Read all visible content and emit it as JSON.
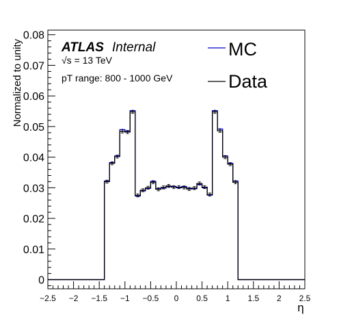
{
  "chart_data": {
    "type": "line",
    "style": "step-histogram",
    "xlabel": "η",
    "ylabel": "Normalized to unity",
    "xlim": [
      -2.5,
      2.5
    ],
    "ylim": [
      -0.003,
      0.0815
    ],
    "x_ticks": [
      -2.5,
      -2,
      -1.5,
      -1,
      -0.5,
      0,
      0.5,
      1,
      1.5,
      2,
      2.5
    ],
    "x_tick_labels": [
      "−2.5",
      "−2",
      "−1.5",
      "−1",
      "−0.5",
      "0",
      "0.5",
      "1",
      "1.5",
      "2",
      "2.5"
    ],
    "y_ticks": [
      0,
      0.01,
      0.02,
      0.03,
      0.04,
      0.05,
      0.06,
      0.07,
      0.08
    ],
    "y_tick_labels": [
      "0",
      "0.01",
      "0.02",
      "0.03",
      "0.04",
      "0.05",
      "0.06",
      "0.07",
      "0.08"
    ],
    "grid": false,
    "legend_position": "top-right",
    "annotations": {
      "atlas": "ATLAS",
      "internal": "Internal",
      "energy": "√s = 13 TeV",
      "range": "pT range: 800 - 1000 GeV"
    },
    "bin_edges": [
      -2.5,
      -1.4,
      -1.3,
      -1.2,
      -1.1,
      -1.0,
      -0.9,
      -0.8,
      -0.7,
      -0.6,
      -0.5,
      -0.4,
      -0.3,
      -0.2,
      -0.1,
      0.0,
      0.1,
      0.2,
      0.3,
      0.4,
      0.5,
      0.6,
      0.7,
      0.8,
      0.9,
      1.0,
      1.1,
      1.2,
      1.3,
      1.4,
      2.5
    ],
    "series": [
      {
        "name": "MC",
        "color": "#0000cc",
        "values": [
          0,
          0.0322,
          0.0382,
          0.0404,
          0.049,
          0.0485,
          0.0552,
          0.0273,
          0.029,
          0.0298,
          0.0321,
          0.0297,
          0.0299,
          0.0304,
          0.0304,
          0.03,
          0.0304,
          0.0298,
          0.0297,
          0.0311,
          0.03,
          0.0276,
          0.0552,
          0.0492,
          0.0404,
          0.038,
          0.0322,
          0,
          0,
          0
        ],
        "errors": [
          0,
          0.0003,
          0.0003,
          0.0003,
          0.0003,
          0.0003,
          0.0003,
          0.0003,
          0.0003,
          0.0003,
          0.0003,
          0.0003,
          0.0003,
          0.0003,
          0.0003,
          0.0003,
          0.0003,
          0.0003,
          0.0003,
          0.0003,
          0.0003,
          0.0003,
          0.0003,
          0.0003,
          0.0003,
          0.0003,
          0.0003,
          0,
          0,
          0
        ]
      },
      {
        "name": "Data",
        "color": "#000000",
        "values": [
          0,
          0.032,
          0.038,
          0.0402,
          0.0484,
          0.0482,
          0.0548,
          0.0275,
          0.0292,
          0.03,
          0.0318,
          0.0295,
          0.0301,
          0.0306,
          0.0302,
          0.0302,
          0.0301,
          0.0296,
          0.0299,
          0.0314,
          0.0302,
          0.0278,
          0.0548,
          0.0486,
          0.04,
          0.0377,
          0.0318,
          0,
          0,
          0
        ],
        "errors": [
          0,
          0.0005,
          0.0005,
          0.0005,
          0.0005,
          0.0005,
          0.0005,
          0.0005,
          0.0005,
          0.0005,
          0.0005,
          0.0005,
          0.0005,
          0.0005,
          0.0005,
          0.0005,
          0.0005,
          0.0005,
          0.0005,
          0.0005,
          0.0005,
          0.0005,
          0.0005,
          0.0005,
          0.0005,
          0.0005,
          0.0005,
          0,
          0,
          0
        ]
      }
    ]
  }
}
